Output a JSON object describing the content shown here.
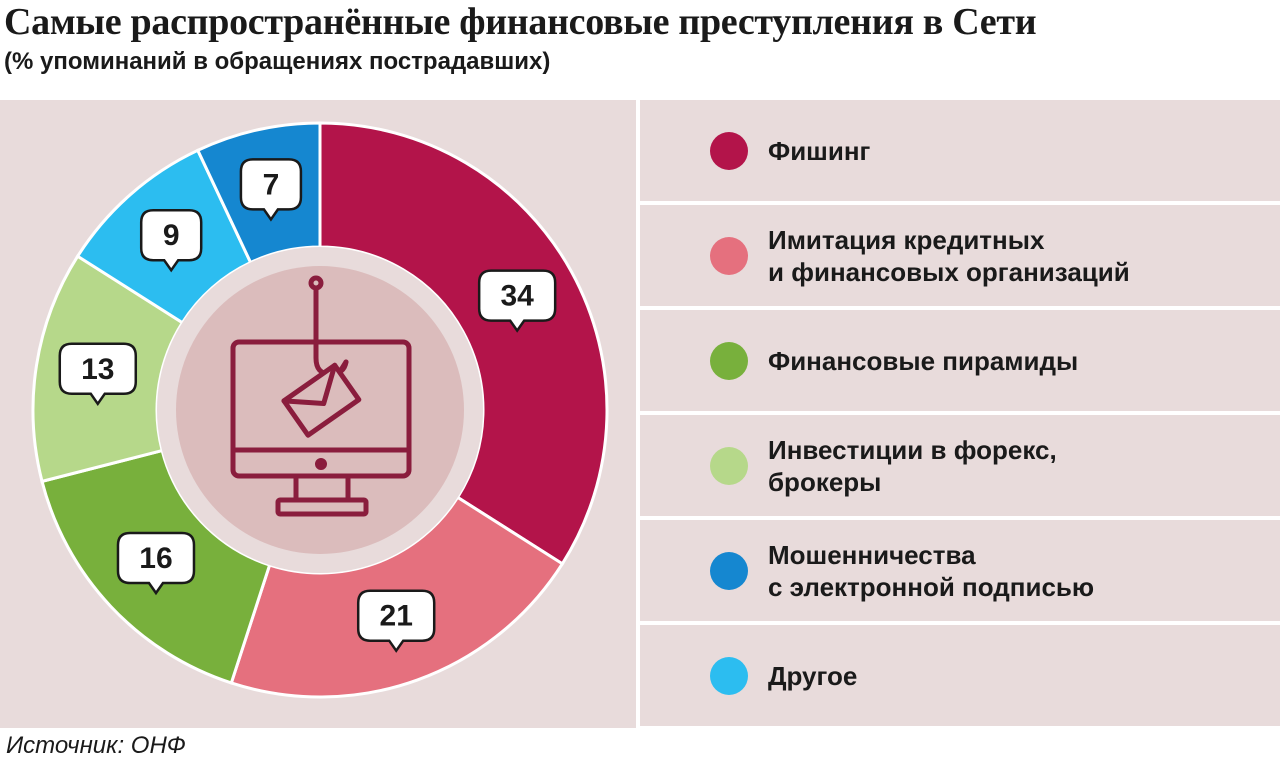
{
  "title": "Самые распространённые финансовые преступления в Сети",
  "subtitle": "(% упоминаний в обращениях пострадавших)",
  "source": "Источник: ОНФ",
  "chart_data": {
    "type": "pie",
    "donut": true,
    "unit": "%",
    "categories": [
      "Фишинг",
      "Имитация кредитных\nи финансовых организаций",
      "Финансовые пирамиды",
      "Инвестиции в форекс,\nброкеры",
      "Мошенничества\nс электронной подписью",
      "Другое"
    ],
    "values": [
      34,
      21,
      16,
      13,
      7,
      9
    ],
    "colors": [
      "#b3144a",
      "#e5707e",
      "#78b03c",
      "#b6d88a",
      "#1587d0",
      "#2cbdf0"
    ],
    "draw_order": [
      0,
      1,
      2,
      3,
      5,
      4
    ],
    "legend_position": "right",
    "center_icon": "phishing-computer-icon"
  }
}
